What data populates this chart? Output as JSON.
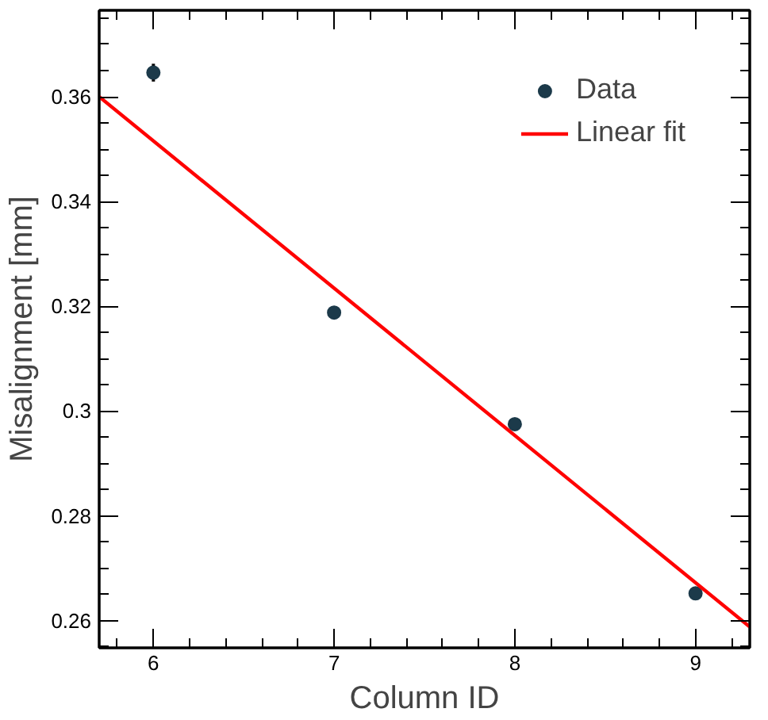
{
  "chart_data": {
    "type": "scatter",
    "xlabel": "Column ID",
    "ylabel": "Misalignment [mm]",
    "xlim": [
      5.7,
      9.3
    ],
    "ylim": [
      0.2548,
      0.3765
    ],
    "xticks": [
      6,
      7,
      8,
      9
    ],
    "yticks": [
      0.26,
      0.28,
      {
        "value": 0.3,
        "label": "0.3"
      },
      0.32,
      0.34,
      0.36
    ],
    "grid": false,
    "legend": "top right",
    "series": [
      {
        "name": "Data",
        "marker": "circle",
        "color": "#1c3a4a",
        "x": [
          6,
          7,
          8,
          9
        ],
        "values": [
          0.3646,
          0.3188,
          0.2975,
          0.2652
        ],
        "errors": [
          0.0017,
          null,
          null,
          null
        ]
      },
      {
        "name": "Linear fit",
        "type": "line",
        "color": "#ff0000",
        "line_style": "solid",
        "x": [
          5.7,
          9.3
        ],
        "values": [
          0.36,
          0.2588
        ]
      }
    ]
  }
}
